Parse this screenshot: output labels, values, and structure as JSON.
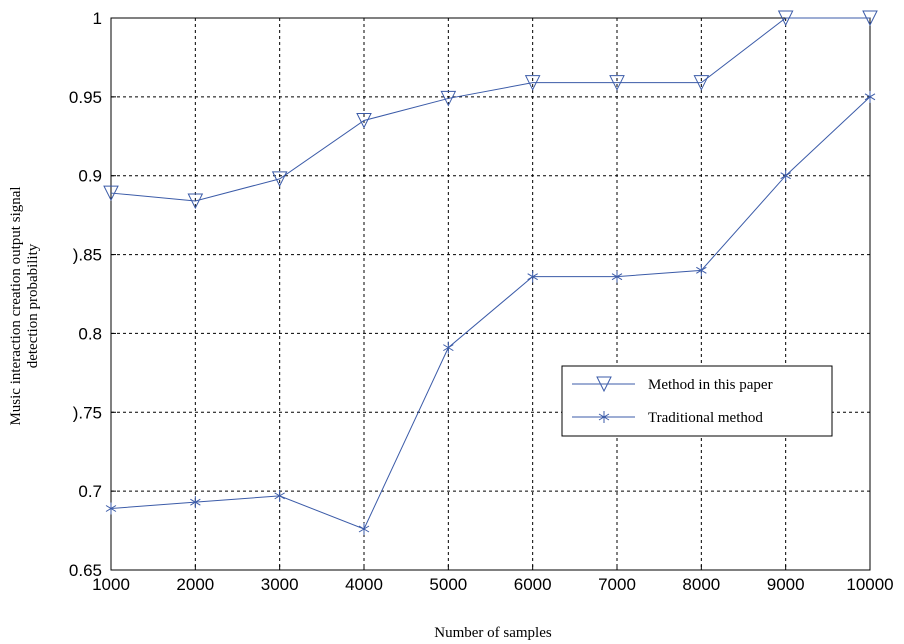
{
  "chart_data": {
    "type": "line",
    "xlabel": "Number of samples",
    "ylabel_lines": [
      "Music interaction creation output signal",
      "detection probability"
    ],
    "x": [
      1000,
      2000,
      3000,
      4000,
      5000,
      6000,
      7000,
      8000,
      9000,
      10000
    ],
    "x_tick_labels": [
      "1000",
      "2000",
      "3000",
      "4000",
      "5000",
      "6000",
      "7000",
      "8000",
      "9000",
      "10000"
    ],
    "y_tick_values": [
      0.65,
      0.7,
      0.75,
      0.8,
      0.85,
      0.9,
      0.95,
      1
    ],
    "y_tick_labels": [
      "0.65",
      "0.7",
      ").75",
      "0.8",
      ").85",
      "0.9",
      "0.95",
      "1"
    ],
    "xlim": [
      1000,
      10000
    ],
    "ylim": [
      0.65,
      1.0
    ],
    "grid": true,
    "legend_position": "right",
    "series": [
      {
        "name": "Method in this paper",
        "marker": "triangle-down",
        "color": "#3b5ba8",
        "values": [
          0.889,
          0.884,
          0.898,
          0.935,
          0.949,
          0.959,
          0.959,
          0.959,
          1.0,
          1.0
        ]
      },
      {
        "name": "Traditional method",
        "marker": "asterisk",
        "color": "#3b5ba8",
        "values": [
          0.689,
          0.693,
          0.697,
          0.676,
          0.791,
          0.836,
          0.836,
          0.84,
          0.9,
          0.95
        ]
      }
    ]
  }
}
